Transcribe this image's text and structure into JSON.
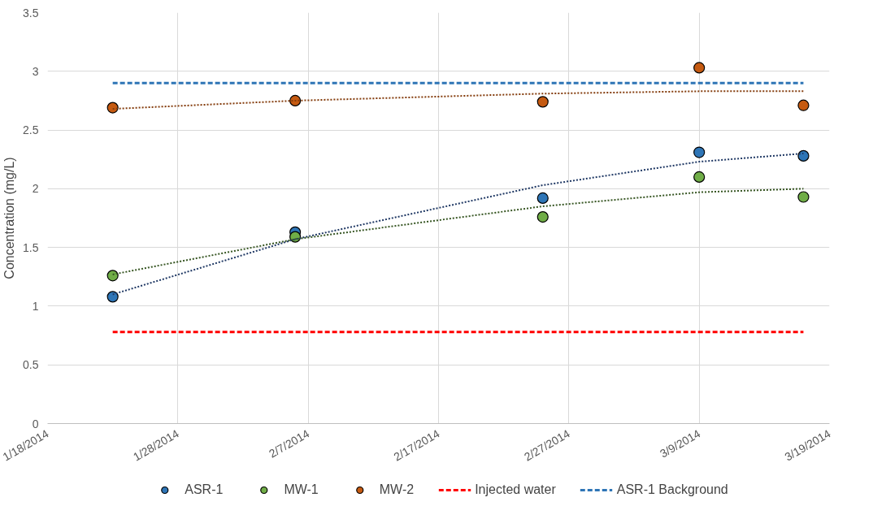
{
  "chart_data": {
    "type": "scatter",
    "ylabel": "Concentration (mg/L)",
    "x": [
      "2014-01-23",
      "2014-02-06",
      "2014-02-25",
      "2014-03-09",
      "2014-03-17"
    ],
    "series": [
      {
        "name": "ASR-1",
        "color": "#2e75b6",
        "marker": "circle",
        "values": [
          1.08,
          1.63,
          1.92,
          2.31,
          2.28
        ]
      },
      {
        "name": "MW-1",
        "color": "#70ad47",
        "marker": "circle",
        "values": [
          1.26,
          1.59,
          1.76,
          2.1,
          1.93
        ]
      },
      {
        "name": "MW-2",
        "color": "#c55a11",
        "marker": "circle",
        "values": [
          2.69,
          2.75,
          2.74,
          3.03,
          2.71
        ]
      },
      {
        "name": "Injected water",
        "type": "line",
        "color": "#ff0000",
        "line_style": "dashed",
        "x": [
          "2014-01-23",
          "2014-03-17"
        ],
        "values": [
          0.78,
          0.78
        ]
      },
      {
        "name": "ASR-1 Background",
        "type": "line",
        "color": "#2e75b6",
        "line_style": "dashed",
        "x": [
          "2014-01-23",
          "2014-03-17"
        ],
        "values": [
          2.9,
          2.9
        ]
      },
      {
        "type": "line",
        "color": "#1f3864",
        "line_style": "dotted",
        "values": [
          1.1,
          1.57,
          2.03,
          2.23,
          2.3
        ]
      },
      {
        "type": "line",
        "color": "#375623",
        "line_style": "dotted",
        "values": [
          1.27,
          1.57,
          1.85,
          1.97,
          2.0
        ]
      },
      {
        "type": "line",
        "color": "#843c0c",
        "line_style": "dotted",
        "values": [
          2.68,
          2.75,
          2.81,
          2.83,
          2.83
        ]
      }
    ],
    "xlim": [
      "2014-01-18",
      "2014-03-19"
    ],
    "xticks": [
      {
        "value": "2014-01-18",
        "label": "1/18/2014"
      },
      {
        "value": "2014-01-28",
        "label": "1/28/2014"
      },
      {
        "value": "2014-02-07",
        "label": "2/7/2014"
      },
      {
        "value": "2014-02-17",
        "label": "2/17/2014"
      },
      {
        "value": "2014-02-27",
        "label": "2/27/2014"
      },
      {
        "value": "2014-03-09",
        "label": "3/9/2014"
      },
      {
        "value": "2014-03-19",
        "label": "3/19/2014"
      }
    ],
    "ylim": [
      0,
      3.5
    ],
    "yticks": [
      0,
      0.5,
      1,
      1.5,
      2,
      2.5,
      3,
      3.5
    ],
    "grid": true,
    "legend": "bottom"
  }
}
